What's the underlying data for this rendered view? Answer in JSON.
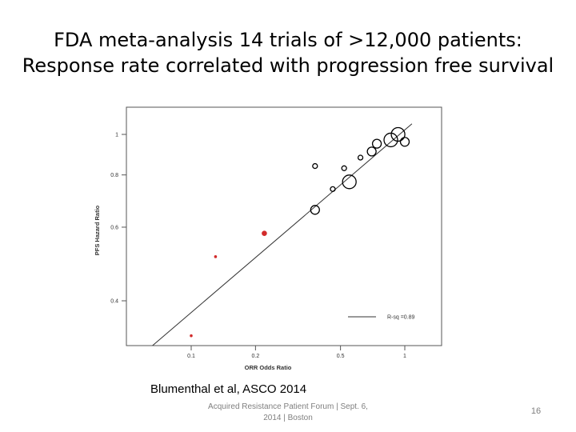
{
  "slide": {
    "title_line1": "FDA meta-analysis 14 trials of >12,000 patients:",
    "title_line2": "Response rate correlated with progression free survival",
    "citation": "Blumenthal et al, ASCO 2014",
    "footer": "Acquired Resistance Patient Forum | Sept. 6, 2014 | Boston",
    "page_number": "16"
  },
  "chart_data": {
    "type": "scatter",
    "xlabel": "ORR Odds Ratio",
    "ylabel": "PFS Hazard Ratio",
    "x_scale": "log",
    "y_scale": "log",
    "x_ticks": [
      "0.1",
      "0.2",
      "0.5",
      "1"
    ],
    "y_ticks": [
      "0.4",
      "0.6",
      "0.8",
      "1"
    ],
    "grid": false,
    "legend": {
      "position": "bottom-right",
      "entries": [
        {
          "label": "R-sq =0.89",
          "style": "line"
        }
      ]
    },
    "colors": {
      "open_marker": "#000000",
      "filled_marker": "#d22b2b",
      "fit_line": "#333333"
    },
    "points": [
      {
        "x": 0.93,
        "y": 1.0,
        "size": "large",
        "style": "open"
      },
      {
        "x": 0.86,
        "y": 0.97,
        "size": "large",
        "style": "open"
      },
      {
        "x": 1.0,
        "y": 0.96,
        "size": "medium",
        "style": "open"
      },
      {
        "x": 0.74,
        "y": 0.95,
        "size": "medium",
        "style": "open"
      },
      {
        "x": 0.7,
        "y": 0.91,
        "size": "medium",
        "style": "open"
      },
      {
        "x": 0.62,
        "y": 0.88,
        "size": "small",
        "style": "open"
      },
      {
        "x": 0.52,
        "y": 0.83,
        "size": "small",
        "style": "open"
      },
      {
        "x": 0.38,
        "y": 0.84,
        "size": "small",
        "style": "open"
      },
      {
        "x": 0.55,
        "y": 0.77,
        "size": "large",
        "style": "open"
      },
      {
        "x": 0.46,
        "y": 0.74,
        "size": "small",
        "style": "open"
      },
      {
        "x": 0.38,
        "y": 0.66,
        "size": "medium",
        "style": "open"
      },
      {
        "x": 0.22,
        "y": 0.58,
        "size": "small",
        "style": "filled"
      },
      {
        "x": 0.13,
        "y": 0.51,
        "size": "tiny",
        "style": "filled"
      },
      {
        "x": 0.1,
        "y": 0.33,
        "size": "tiny",
        "style": "filled"
      }
    ],
    "fit_line": {
      "x": [
        0.06,
        1.08
      ],
      "y": [
        0.3,
        1.06
      ]
    }
  }
}
